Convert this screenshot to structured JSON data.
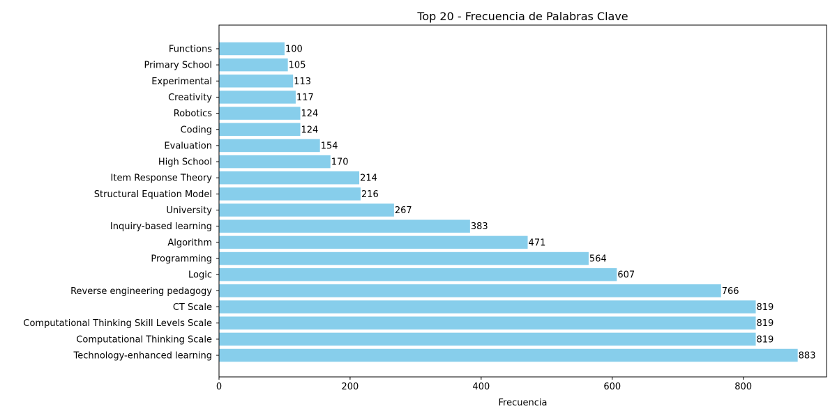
{
  "chart_data": {
    "type": "bar",
    "orientation": "horizontal",
    "title": "Top 20 - Frecuencia de Palabras Clave",
    "xlabel": "Frecuencia",
    "ylabel": "",
    "xlim": [
      0,
      927
    ],
    "xticks": [
      0,
      200,
      400,
      600,
      800
    ],
    "grid": false,
    "legend": "none",
    "bar_color": "#87CEEB",
    "categories": [
      "Technology-enhanced learning",
      "Computational Thinking Scale",
      "Computational Thinking Skill Levels Scale",
      "CT Scale",
      "Reverse engineering pedagogy",
      "Logic",
      "Programming",
      "Algorithm",
      "Inquiry-based learning",
      "University",
      "Structural Equation Model",
      "Item Response Theory",
      "High School",
      "Evaluation",
      "Coding",
      "Robotics",
      "Creativity",
      "Experimental",
      "Primary School",
      "Functions"
    ],
    "values": [
      883,
      819,
      819,
      819,
      766,
      607,
      564,
      471,
      383,
      267,
      216,
      214,
      170,
      154,
      124,
      124,
      117,
      113,
      105,
      100
    ]
  }
}
